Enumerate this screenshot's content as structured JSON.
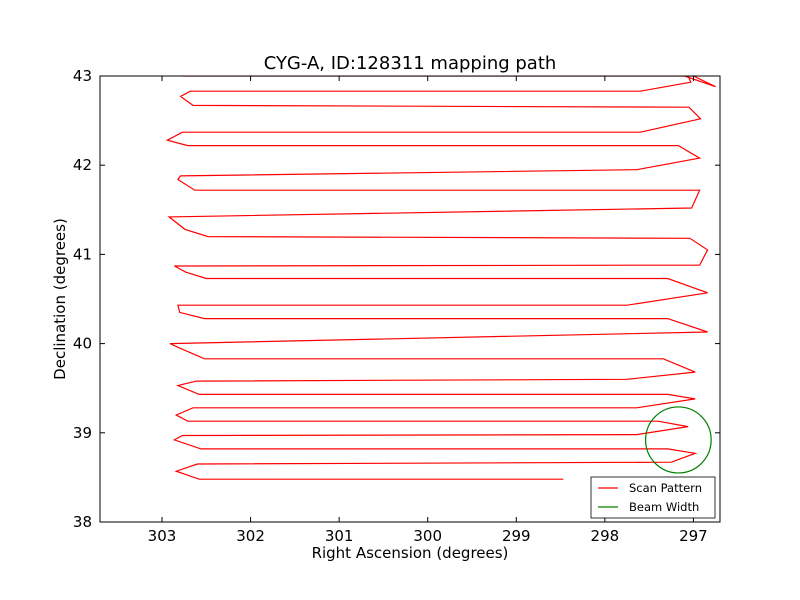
{
  "chart_data": {
    "type": "line",
    "title": "CYG-A, ID:128311 mapping path",
    "xlabel": "Right Ascension (degrees)",
    "ylabel": "Declination (degrees)",
    "xlim": [
      303.7,
      296.7
    ],
    "ylim": [
      38,
      43
    ],
    "x_inverted": true,
    "xticks": [
      303,
      302,
      301,
      300,
      299,
      298,
      297
    ],
    "yticks": [
      38,
      39,
      40,
      41,
      42,
      43
    ],
    "grid": false,
    "legend_position": "lower-right",
    "series": [
      {
        "name": "Scan Pattern",
        "color": "#ff0000",
        "type": "line",
        "x": [
          298.47,
          302.45,
          302.58,
          302.84,
          302.6,
          297.25,
          296.98,
          297.29,
          302.56,
          302.86,
          302.77,
          297.64,
          297.06,
          297.4,
          302.71,
          302.84,
          302.65,
          297.64,
          296.98,
          297.29,
          302.58,
          302.82,
          302.61,
          297.75,
          296.98,
          297.34,
          302.52,
          302.8,
          302.91,
          296.84,
          297.29,
          302.52,
          302.8,
          302.82,
          297.75,
          296.84,
          297.29,
          302.5,
          302.73,
          302.86,
          296.93,
          296.84,
          297.04,
          302.48,
          302.74,
          302.92,
          297.02,
          296.93,
          297.23,
          302.63,
          302.82,
          302.79,
          297.64,
          296.93,
          297.17,
          302.71,
          302.94,
          302.77,
          297.6,
          296.92,
          297.05,
          302.65,
          302.79,
          302.68,
          297.6,
          297.03,
          297.06,
          302.63,
          302.77,
          302.65,
          297.62,
          297.0,
          296.75,
          297.1,
          302.0,
          302.32
        ],
        "y": [
          38.48,
          38.48,
          38.48,
          38.57,
          38.65,
          38.67,
          38.77,
          38.82,
          38.82,
          38.92,
          38.97,
          38.98,
          39.07,
          39.13,
          39.13,
          39.2,
          39.28,
          39.28,
          39.38,
          39.43,
          39.43,
          39.53,
          39.58,
          39.6,
          39.68,
          39.83,
          39.83,
          39.95,
          40.0,
          40.13,
          40.28,
          40.28,
          40.35,
          40.43,
          40.43,
          40.57,
          40.73,
          40.73,
          40.8,
          40.87,
          40.88,
          41.05,
          41.18,
          41.2,
          41.28,
          41.42,
          41.52,
          41.72,
          41.72,
          41.72,
          41.84,
          41.88,
          41.95,
          42.08,
          42.22,
          42.22,
          42.28,
          42.37,
          42.37,
          42.52,
          42.65,
          42.67,
          42.77,
          42.83,
          42.83,
          42.93,
          43.0,
          43.0,
          43.0,
          43.0,
          43.0,
          43.0,
          42.88,
          43.0,
          43.0,
          43.0
        ]
      },
      {
        "name": "Beam Width",
        "color": "#008000",
        "type": "circle",
        "center": [
          297.17,
          38.92
        ],
        "radius_deg": 0.37
      }
    ]
  }
}
